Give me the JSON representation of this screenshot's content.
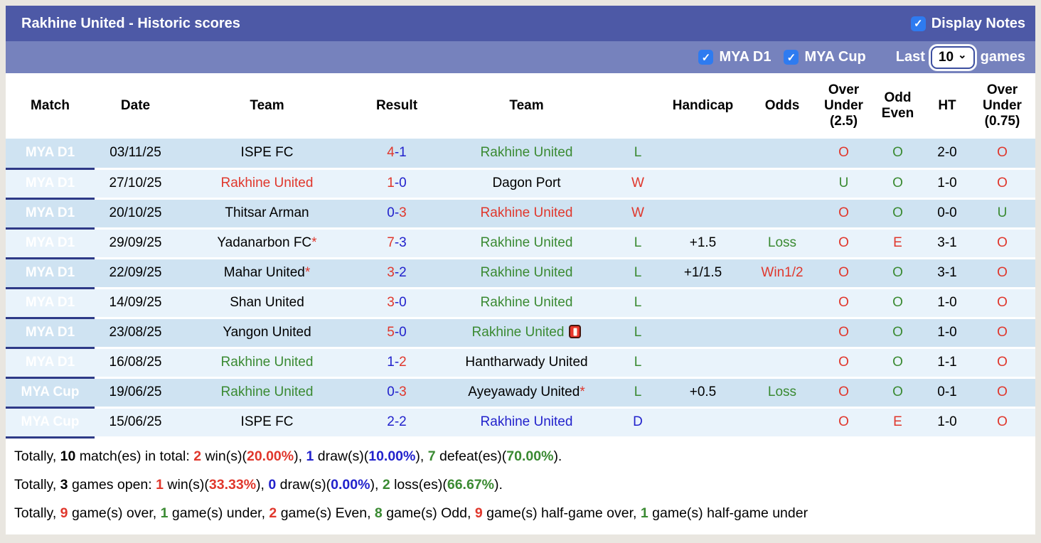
{
  "icons": {
    "check": "✓",
    "chevron_down": "⌄"
  },
  "header": {
    "title": "Rakhine United - Historic scores",
    "display_notes_label": "Display Notes"
  },
  "filter_bar": {
    "league_filters": [
      {
        "label": "MYA D1",
        "checked": true
      },
      {
        "label": "MYA Cup",
        "checked": true
      }
    ],
    "last_label": "Last",
    "games_count": "10",
    "games_label": "games"
  },
  "colors": {
    "bar_primary": "#4d59a6",
    "bar_secondary": "#7682bd",
    "league_cell": "#2e3a87",
    "row_dark": "#cfe3f2",
    "row_light": "#e9f3fb",
    "win_red": "#e0372c",
    "loss_green": "#3a8a32",
    "draw_blue": "#2222cc",
    "checkbox_blue": "#2e7bf0"
  },
  "table": {
    "columns": [
      "Match",
      "Date",
      "Team",
      "Result",
      "Team",
      "",
      "Handicap",
      "Odds",
      "Over Under (2.5)",
      "Odd Even",
      "HT",
      "Over Under (0.75)"
    ],
    "rows": [
      {
        "league": "MYA D1",
        "date": "03/11/25",
        "home": {
          "name": "ISPE FC",
          "color": "black",
          "star": false,
          "icon": false
        },
        "score": {
          "home": "4",
          "home_color": "red",
          "away": "1",
          "away_color": "blue"
        },
        "away": {
          "name": "Rakhine United",
          "color": "green",
          "star": false,
          "icon": false
        },
        "outcome": {
          "text": "L",
          "color": "green"
        },
        "handicap": "",
        "odds": {
          "text": "",
          "color": "black"
        },
        "over_under_25": {
          "text": "O",
          "color": "red"
        },
        "odd_even": {
          "text": "O",
          "color": "green"
        },
        "ht": "2-0",
        "over_under_075": {
          "text": "O",
          "color": "red"
        }
      },
      {
        "league": "MYA D1",
        "date": "27/10/25",
        "home": {
          "name": "Rakhine United",
          "color": "red",
          "star": false,
          "icon": false
        },
        "score": {
          "home": "1",
          "home_color": "red",
          "away": "0",
          "away_color": "blue"
        },
        "away": {
          "name": "Dagon Port",
          "color": "black",
          "star": false,
          "icon": false
        },
        "outcome": {
          "text": "W",
          "color": "red"
        },
        "handicap": "",
        "odds": {
          "text": "",
          "color": "black"
        },
        "over_under_25": {
          "text": "U",
          "color": "green"
        },
        "odd_even": {
          "text": "O",
          "color": "green"
        },
        "ht": "1-0",
        "over_under_075": {
          "text": "O",
          "color": "red"
        }
      },
      {
        "league": "MYA D1",
        "date": "20/10/25",
        "home": {
          "name": "Thitsar Arman",
          "color": "black",
          "star": false,
          "icon": false
        },
        "score": {
          "home": "0",
          "home_color": "blue",
          "away": "3",
          "away_color": "red"
        },
        "away": {
          "name": "Rakhine United",
          "color": "red",
          "star": false,
          "icon": false
        },
        "outcome": {
          "text": "W",
          "color": "red"
        },
        "handicap": "",
        "odds": {
          "text": "",
          "color": "black"
        },
        "over_under_25": {
          "text": "O",
          "color": "red"
        },
        "odd_even": {
          "text": "O",
          "color": "green"
        },
        "ht": "0-0",
        "over_under_075": {
          "text": "U",
          "color": "green"
        }
      },
      {
        "league": "MYA D1",
        "date": "29/09/25",
        "home": {
          "name": "Yadanarbon FC",
          "color": "black",
          "star": true,
          "icon": false
        },
        "score": {
          "home": "7",
          "home_color": "red",
          "away": "3",
          "away_color": "blue"
        },
        "away": {
          "name": "Rakhine United",
          "color": "green",
          "star": false,
          "icon": false
        },
        "outcome": {
          "text": "L",
          "color": "green"
        },
        "handicap": "+1.5",
        "odds": {
          "text": "Loss",
          "color": "green"
        },
        "over_under_25": {
          "text": "O",
          "color": "red"
        },
        "odd_even": {
          "text": "E",
          "color": "red"
        },
        "ht": "3-1",
        "over_under_075": {
          "text": "O",
          "color": "red"
        }
      },
      {
        "league": "MYA D1",
        "date": "22/09/25",
        "home": {
          "name": "Mahar United",
          "color": "black",
          "star": true,
          "icon": false
        },
        "score": {
          "home": "3",
          "home_color": "red",
          "away": "2",
          "away_color": "blue"
        },
        "away": {
          "name": "Rakhine United",
          "color": "green",
          "star": false,
          "icon": false
        },
        "outcome": {
          "text": "L",
          "color": "green"
        },
        "handicap": "+1/1.5",
        "odds": {
          "text": "Win1/2",
          "color": "red"
        },
        "over_under_25": {
          "text": "O",
          "color": "red"
        },
        "odd_even": {
          "text": "O",
          "color": "green"
        },
        "ht": "3-1",
        "over_under_075": {
          "text": "O",
          "color": "red"
        }
      },
      {
        "league": "MYA D1",
        "date": "14/09/25",
        "home": {
          "name": "Shan United",
          "color": "black",
          "star": false,
          "icon": false
        },
        "score": {
          "home": "3",
          "home_color": "red",
          "away": "0",
          "away_color": "blue"
        },
        "away": {
          "name": "Rakhine United",
          "color": "green",
          "star": false,
          "icon": false
        },
        "outcome": {
          "text": "L",
          "color": "green"
        },
        "handicap": "",
        "odds": {
          "text": "",
          "color": "black"
        },
        "over_under_25": {
          "text": "O",
          "color": "red"
        },
        "odd_even": {
          "text": "O",
          "color": "green"
        },
        "ht": "1-0",
        "over_under_075": {
          "text": "O",
          "color": "red"
        }
      },
      {
        "league": "MYA D1",
        "date": "23/08/25",
        "home": {
          "name": "Yangon United",
          "color": "black",
          "star": false,
          "icon": false
        },
        "score": {
          "home": "5",
          "home_color": "red",
          "away": "0",
          "away_color": "blue"
        },
        "away": {
          "name": "Rakhine United",
          "color": "green",
          "star": false,
          "icon": true
        },
        "outcome": {
          "text": "L",
          "color": "green"
        },
        "handicap": "",
        "odds": {
          "text": "",
          "color": "black"
        },
        "over_under_25": {
          "text": "O",
          "color": "red"
        },
        "odd_even": {
          "text": "O",
          "color": "green"
        },
        "ht": "1-0",
        "over_under_075": {
          "text": "O",
          "color": "red"
        }
      },
      {
        "league": "MYA D1",
        "date": "16/08/25",
        "home": {
          "name": "Rakhine United",
          "color": "green",
          "star": false,
          "icon": false
        },
        "score": {
          "home": "1",
          "home_color": "blue",
          "away": "2",
          "away_color": "red"
        },
        "away": {
          "name": "Hantharwady United",
          "color": "black",
          "star": false,
          "icon": false
        },
        "outcome": {
          "text": "L",
          "color": "green"
        },
        "handicap": "",
        "odds": {
          "text": "",
          "color": "black"
        },
        "over_under_25": {
          "text": "O",
          "color": "red"
        },
        "odd_even": {
          "text": "O",
          "color": "green"
        },
        "ht": "1-1",
        "over_under_075": {
          "text": "O",
          "color": "red"
        }
      },
      {
        "league": "MYA Cup",
        "date": "19/06/25",
        "home": {
          "name": "Rakhine United",
          "color": "green",
          "star": false,
          "icon": false
        },
        "score": {
          "home": "0",
          "home_color": "blue",
          "away": "3",
          "away_color": "red"
        },
        "away": {
          "name": "Ayeyawady United",
          "color": "black",
          "star": true,
          "icon": false
        },
        "outcome": {
          "text": "L",
          "color": "green"
        },
        "handicap": "+0.5",
        "odds": {
          "text": "Loss",
          "color": "green"
        },
        "over_under_25": {
          "text": "O",
          "color": "red"
        },
        "odd_even": {
          "text": "O",
          "color": "green"
        },
        "ht": "0-1",
        "over_under_075": {
          "text": "O",
          "color": "red"
        }
      },
      {
        "league": "MYA Cup",
        "date": "15/06/25",
        "home": {
          "name": "ISPE FC",
          "color": "black",
          "star": false,
          "icon": false
        },
        "score": {
          "home": "2",
          "home_color": "blue",
          "away": "2",
          "away_color": "blue"
        },
        "away": {
          "name": "Rakhine United",
          "color": "blue",
          "star": false,
          "icon": false
        },
        "outcome": {
          "text": "D",
          "color": "blue"
        },
        "handicap": "",
        "odds": {
          "text": "",
          "color": "black"
        },
        "over_under_25": {
          "text": "O",
          "color": "red"
        },
        "odd_even": {
          "text": "E",
          "color": "red"
        },
        "ht": "1-0",
        "over_under_075": {
          "text": "O",
          "color": "red"
        }
      }
    ]
  },
  "summary": {
    "lines": [
      {
        "segments": [
          {
            "text": "Totally, ",
            "color": "black",
            "bold": false
          },
          {
            "text": "10",
            "color": "black",
            "bold": true
          },
          {
            "text": " match(es) in total: ",
            "color": "black",
            "bold": false
          },
          {
            "text": "2",
            "color": "red",
            "bold": true
          },
          {
            "text": " win(s)(",
            "color": "black",
            "bold": false
          },
          {
            "text": "20.00%",
            "color": "red",
            "bold": true
          },
          {
            "text": "), ",
            "color": "black",
            "bold": false
          },
          {
            "text": "1",
            "color": "blue",
            "bold": true
          },
          {
            "text": " draw(s)(",
            "color": "black",
            "bold": false
          },
          {
            "text": "10.00%",
            "color": "blue",
            "bold": true
          },
          {
            "text": "), ",
            "color": "black",
            "bold": false
          },
          {
            "text": "7",
            "color": "green",
            "bold": true
          },
          {
            "text": " defeat(es)(",
            "color": "black",
            "bold": false
          },
          {
            "text": "70.00%",
            "color": "green",
            "bold": true
          },
          {
            "text": ").",
            "color": "black",
            "bold": false
          }
        ]
      },
      {
        "segments": [
          {
            "text": "Totally, ",
            "color": "black",
            "bold": false
          },
          {
            "text": "3",
            "color": "black",
            "bold": true
          },
          {
            "text": " games open: ",
            "color": "black",
            "bold": false
          },
          {
            "text": "1",
            "color": "red",
            "bold": true
          },
          {
            "text": " win(s)(",
            "color": "black",
            "bold": false
          },
          {
            "text": "33.33%",
            "color": "red",
            "bold": true
          },
          {
            "text": "), ",
            "color": "black",
            "bold": false
          },
          {
            "text": "0",
            "color": "blue",
            "bold": true
          },
          {
            "text": " draw(s)(",
            "color": "black",
            "bold": false
          },
          {
            "text": "0.00%",
            "color": "blue",
            "bold": true
          },
          {
            "text": "), ",
            "color": "black",
            "bold": false
          },
          {
            "text": "2",
            "color": "green",
            "bold": true
          },
          {
            "text": " loss(es)(",
            "color": "black",
            "bold": false
          },
          {
            "text": "66.67%",
            "color": "green",
            "bold": true
          },
          {
            "text": ").",
            "color": "black",
            "bold": false
          }
        ]
      },
      {
        "segments": [
          {
            "text": "Totally, ",
            "color": "black",
            "bold": false
          },
          {
            "text": "9",
            "color": "red",
            "bold": true
          },
          {
            "text": " game(s) over, ",
            "color": "black",
            "bold": false
          },
          {
            "text": "1",
            "color": "green",
            "bold": true
          },
          {
            "text": " game(s) under, ",
            "color": "black",
            "bold": false
          },
          {
            "text": "2",
            "color": "red",
            "bold": true
          },
          {
            "text": " game(s) Even, ",
            "color": "black",
            "bold": false
          },
          {
            "text": "8",
            "color": "green",
            "bold": true
          },
          {
            "text": " game(s) Odd, ",
            "color": "black",
            "bold": false
          },
          {
            "text": "9",
            "color": "red",
            "bold": true
          },
          {
            "text": " game(s) half-game over, ",
            "color": "black",
            "bold": false
          },
          {
            "text": "1",
            "color": "green",
            "bold": true
          },
          {
            "text": " game(s) half-game under",
            "color": "black",
            "bold": false
          }
        ]
      }
    ]
  }
}
